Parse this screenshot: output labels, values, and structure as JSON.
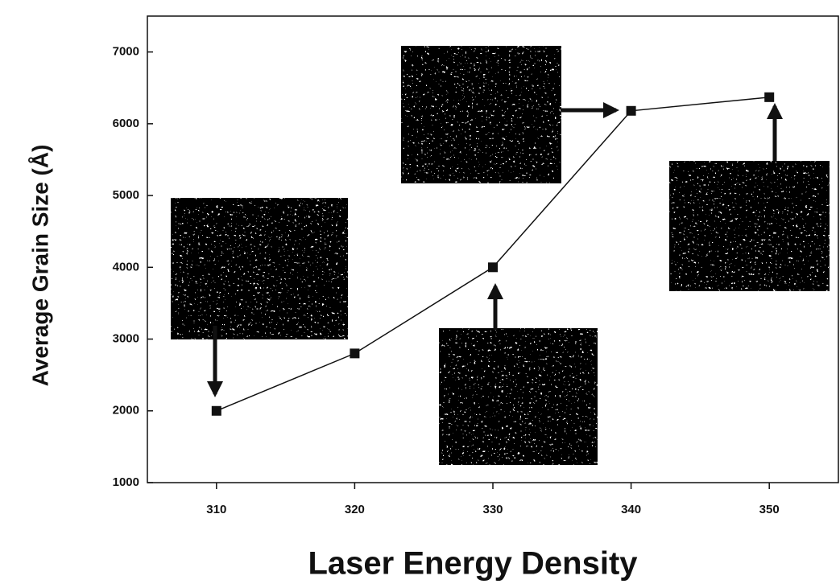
{
  "chart_data": {
    "type": "line",
    "x_label": "Laser Energy Density",
    "y_label": "Average Grain Size (Å)",
    "x": [
      310,
      320,
      330,
      340,
      350
    ],
    "series": [
      {
        "name": null,
        "color": "#111111",
        "values": [
          2000,
          2800,
          4000,
          6180,
          6370
        ]
      }
    ],
    "xlim": [
      305,
      355
    ],
    "xticks": [
      310,
      320,
      330,
      340,
      350
    ],
    "ylim": [
      1000,
      7500
    ],
    "yticks": [
      1000,
      2000,
      3000,
      4000,
      5000,
      6000,
      7000
    ],
    "grid": false
  }
}
